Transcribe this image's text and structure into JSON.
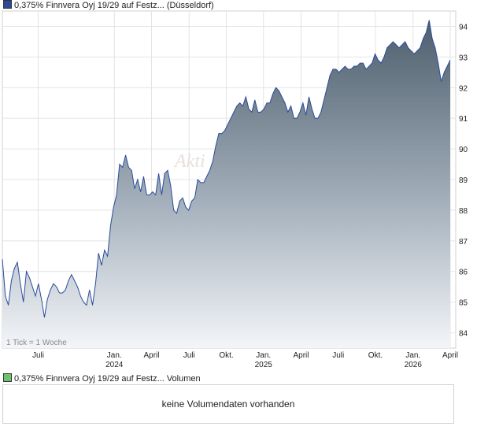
{
  "price_legend": {
    "label": "0,375% Finnvera Oyj 19/29 auf Festz... (Düsseldorf)",
    "color": "#2a4b9b"
  },
  "volume_legend": {
    "label": "0,375% Finnvera Oyj 19/29 auf Festz... Volumen",
    "color": "#6dc36d"
  },
  "volume_panel": {
    "message": "keine Volumendaten vorhanden"
  },
  "tick_note": "1 Tick = 1 Woche",
  "chart_data": {
    "type": "area",
    "title": "0,375% Finnvera Oyj 19/29 auf Festz... (Düsseldorf)",
    "ylim": [
      83.5,
      94.5
    ],
    "y_ticks": [
      84,
      85,
      86,
      87,
      88,
      89,
      90,
      91,
      92,
      93,
      94
    ],
    "x_ticks": [
      {
        "label": "Juli",
        "year": "",
        "t": 0.08
      },
      {
        "label": "Jan.",
        "year": "2024",
        "t": 0.25
      },
      {
        "label": "April",
        "year": "",
        "t": 0.333
      },
      {
        "label": "Juli",
        "year": "",
        "t": 0.417
      },
      {
        "label": "Okt.",
        "year": "",
        "t": 0.5
      },
      {
        "label": "Jan.",
        "year": "2025",
        "t": 0.583
      },
      {
        "label": "April",
        "year": "",
        "t": 0.667
      },
      {
        "label": "Juli",
        "year": "",
        "t": 0.75
      },
      {
        "label": "Okt.",
        "year": "",
        "t": 0.833
      },
      {
        "label": "Jan.",
        "year": "2026",
        "t": 0.917
      },
      {
        "label": "April",
        "year": "",
        "t": 1.0
      }
    ],
    "grid": true,
    "series": [
      {
        "values": [
          86.4,
          85.2,
          84.9,
          85.7,
          86.1,
          86.3,
          85.6,
          85.0,
          86.0,
          85.8,
          85.5,
          85.2,
          85.6,
          85.1,
          84.5,
          85.1,
          85.4,
          85.6,
          85.5,
          85.3,
          85.3,
          85.4,
          85.7,
          85.9,
          85.7,
          85.5,
          85.2,
          85.0,
          84.9,
          85.4,
          84.9,
          85.6,
          86.6,
          86.2,
          86.7,
          86.5,
          87.5,
          88.1,
          88.5,
          89.5,
          89.4,
          89.8,
          89.4,
          89.3,
          88.7,
          89.0,
          88.6,
          89.1,
          88.5,
          88.5,
          88.6,
          88.5,
          89.2,
          88.5,
          89.2,
          89.3,
          88.8,
          88.0,
          87.9,
          88.3,
          88.4,
          88.1,
          88.0,
          88.3,
          88.4,
          89.0,
          88.9,
          88.9,
          89.1,
          89.3,
          89.6,
          90.1,
          90.5,
          90.5,
          90.6,
          90.8,
          91.0,
          91.2,
          91.4,
          91.5,
          91.4,
          91.7,
          91.3,
          91.2,
          91.6,
          91.2,
          91.2,
          91.3,
          91.5,
          91.5,
          91.8,
          92.0,
          91.9,
          91.7,
          91.5,
          91.2,
          91.4,
          91.0,
          91.0,
          91.2,
          91.5,
          91.1,
          91.7,
          91.3,
          91.0,
          91.0,
          91.2,
          91.6,
          92.0,
          92.4,
          92.6,
          92.6,
          92.5,
          92.6,
          92.7,
          92.6,
          92.6,
          92.7,
          92.7,
          92.8,
          92.8,
          92.6,
          92.7,
          92.8,
          93.1,
          92.9,
          92.8,
          93.0,
          93.3,
          93.4,
          93.5,
          93.4,
          93.3,
          93.4,
          93.5,
          93.3,
          93.2,
          93.1,
          93.2,
          93.3,
          93.6,
          93.8,
          94.2,
          93.6,
          93.3,
          92.8,
          92.2,
          92.5,
          92.7,
          92.9
        ]
      }
    ]
  }
}
